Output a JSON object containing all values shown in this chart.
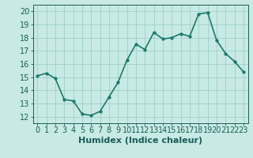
{
  "x": [
    0,
    1,
    2,
    3,
    4,
    5,
    6,
    7,
    8,
    9,
    10,
    11,
    12,
    13,
    14,
    15,
    16,
    17,
    18,
    19,
    20,
    21,
    22,
    23
  ],
  "y": [
    15.1,
    15.3,
    14.9,
    13.3,
    13.2,
    12.2,
    12.1,
    12.4,
    13.5,
    14.6,
    16.3,
    17.5,
    17.1,
    18.4,
    17.9,
    18.0,
    18.3,
    18.1,
    19.8,
    19.9,
    17.8,
    16.8,
    16.2,
    15.4
  ],
  "line_color": "#1a7a6e",
  "marker_color": "#1a7a6e",
  "bg_color": "#c8eae4",
  "grid_color": "#9ecfca",
  "xlabel": "Humidex (Indice chaleur)",
  "xlim": [
    -0.5,
    23.5
  ],
  "ylim": [
    11.5,
    20.5
  ],
  "yticks": [
    12,
    13,
    14,
    15,
    16,
    17,
    18,
    19,
    20
  ],
  "xticks": [
    0,
    1,
    2,
    3,
    4,
    5,
    6,
    7,
    8,
    9,
    10,
    11,
    12,
    13,
    14,
    15,
    16,
    17,
    18,
    19,
    20,
    21,
    22,
    23
  ],
  "font_color": "#1a5c5a",
  "tick_fontsize": 7,
  "xlabel_fontsize": 8,
  "linewidth": 1.2,
  "markersize": 2.5
}
